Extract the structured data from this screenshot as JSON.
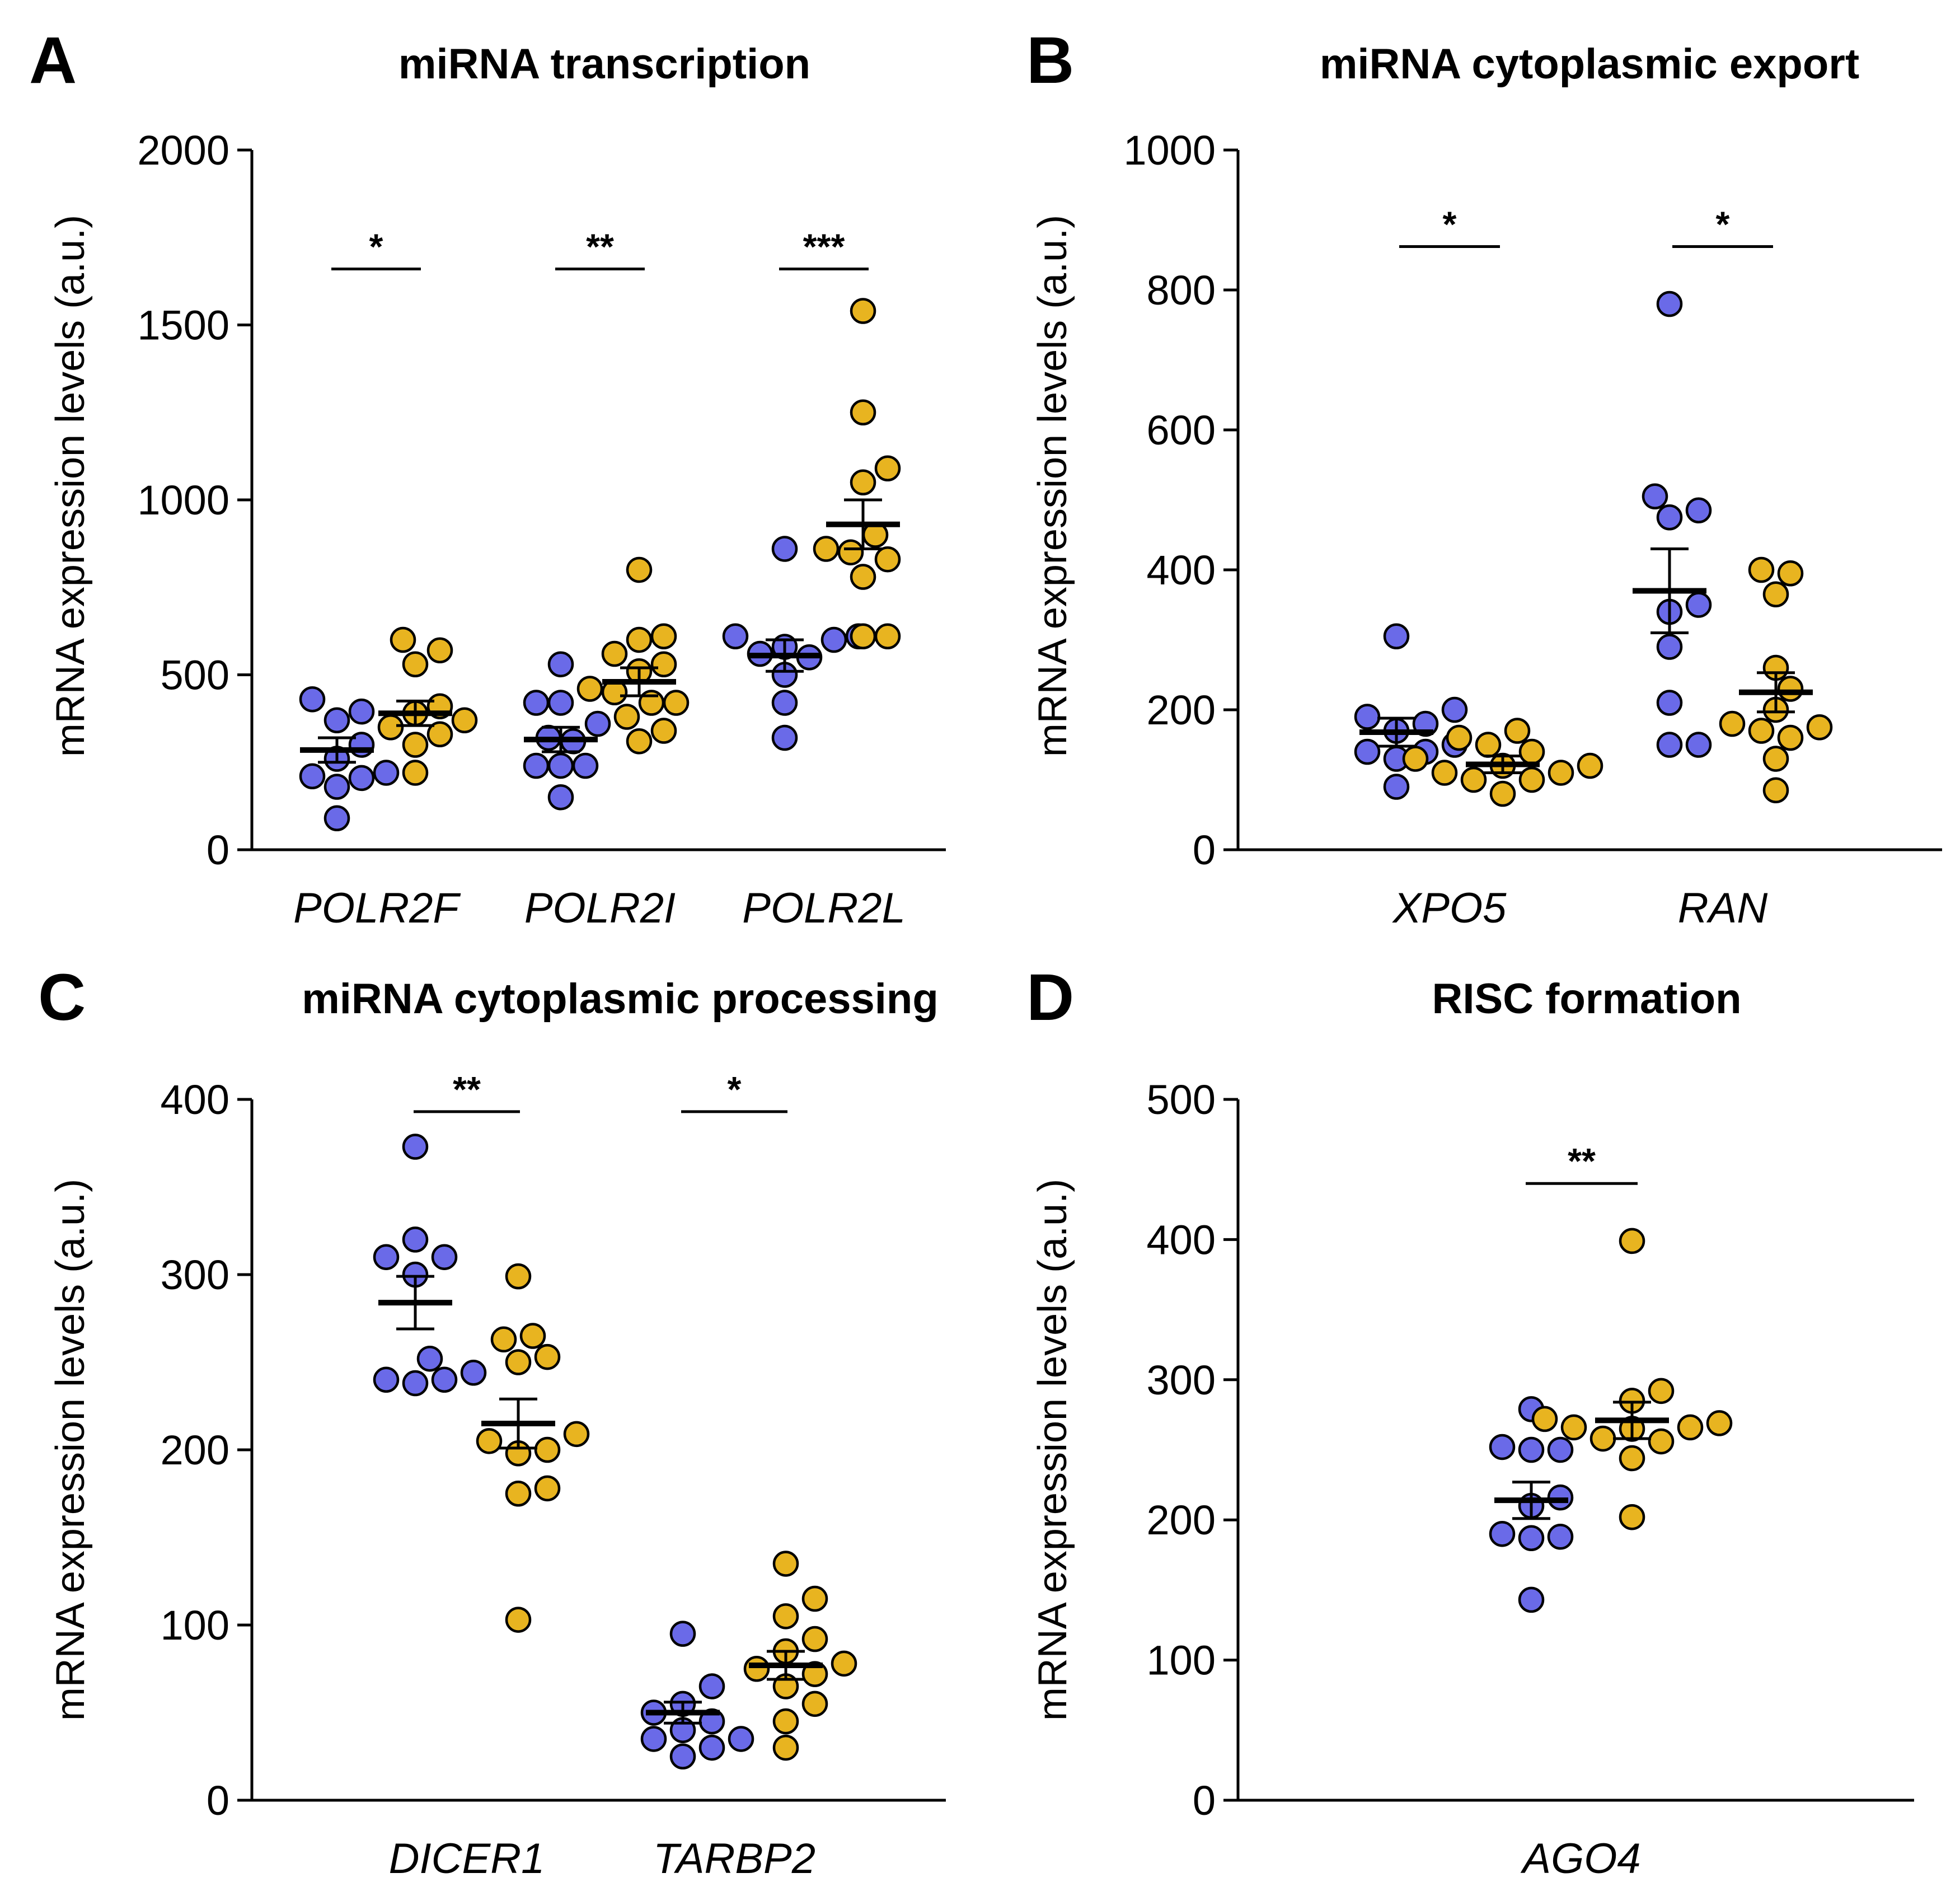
{
  "colors": {
    "group1": "#6a6ae8",
    "group2": "#e8b420",
    "outline": "#000000"
  },
  "chart_data": [
    {
      "panel": "A",
      "type": "scatter",
      "title": "miRNA transcription",
      "ylabel": "mRNA expression levels (a.u.)",
      "ylim": [
        0,
        2000
      ],
      "yticks": [
        0,
        500,
        1000,
        1500,
        2000
      ],
      "categories": [
        "POLR2F",
        "POLR2I",
        "POLR2L"
      ],
      "significance": [
        "*",
        "**",
        "***"
      ],
      "sig_level": 1660,
      "groups": [
        {
          "category": "POLR2F",
          "series": "group1",
          "mean": 285,
          "sem": 35,
          "values": [
            90,
            180,
            220,
            210,
            205,
            300,
            260,
            370,
            430,
            395
          ]
        },
        {
          "category": "POLR2F",
          "series": "group2",
          "mean": 390,
          "sem": 35,
          "values": [
            220,
            300,
            330,
            350,
            370,
            390,
            410,
            530,
            570,
            600
          ]
        },
        {
          "category": "POLR2I",
          "series": "group1",
          "mean": 315,
          "sem": 35,
          "values": [
            150,
            240,
            240,
            240,
            310,
            320,
            360,
            420,
            420,
            530
          ]
        },
        {
          "category": "POLR2I",
          "series": "group2",
          "mean": 480,
          "sem": 40,
          "values": [
            310,
            340,
            380,
            420,
            420,
            450,
            460,
            510,
            530,
            560,
            600,
            610,
            800
          ]
        },
        {
          "category": "POLR2L",
          "series": "group1",
          "mean": 555,
          "sem": 45,
          "values": [
            320,
            420,
            500,
            550,
            560,
            580,
            600,
            610,
            610,
            860
          ]
        },
        {
          "category": "POLR2L",
          "series": "group2",
          "mean": 930,
          "sem": 70,
          "values": [
            610,
            610,
            780,
            830,
            850,
            860,
            900,
            1050,
            1090,
            1250,
            1540
          ]
        }
      ]
    },
    {
      "panel": "B",
      "type": "scatter",
      "title": "miRNA cytoplasmic export",
      "ylabel": "mRNA expression levels (a.u.)",
      "ylim": [
        0,
        1000
      ],
      "yticks": [
        0,
        200,
        400,
        600,
        800,
        1000
      ],
      "categories": [
        "XPO5",
        "RAN"
      ],
      "significance": [
        "*",
        "*"
      ],
      "sig_level": 862,
      "groups": [
        {
          "category": "XPO5",
          "series": "group1",
          "mean": 168,
          "sem": 20,
          "values": [
            90,
            130,
            140,
            140,
            150,
            170,
            180,
            190,
            200,
            305
          ]
        },
        {
          "category": "XPO5",
          "series": "group2",
          "mean": 122,
          "sem": 12,
          "values": [
            80,
            100,
            100,
            110,
            110,
            120,
            120,
            130,
            140,
            150,
            160,
            170
          ]
        },
        {
          "category": "RAN",
          "series": "group1",
          "mean": 370,
          "sem": 60,
          "values": [
            150,
            150,
            210,
            290,
            340,
            350,
            475,
            485,
            505,
            780
          ]
        },
        {
          "category": "RAN",
          "series": "group2",
          "mean": 225,
          "sem": 28,
          "values": [
            85,
            130,
            160,
            170,
            175,
            180,
            200,
            230,
            260,
            365,
            395,
            400
          ]
        }
      ]
    },
    {
      "panel": "C",
      "type": "scatter",
      "title": "miRNA cytoplasmic processing",
      "ylabel": "mRNA expression levels (a.u.)",
      "ylim": [
        0,
        400
      ],
      "yticks": [
        0,
        100,
        200,
        300,
        400
      ],
      "categories": [
        "DICER1",
        "TARBP2"
      ],
      "significance": [
        "**",
        "*"
      ],
      "sig_level": 393,
      "groups": [
        {
          "category": "DICER1",
          "series": "group1",
          "mean": 284,
          "sem": 15,
          "values": [
            238,
            240,
            240,
            244,
            252,
            300,
            310,
            310,
            320,
            373
          ]
        },
        {
          "category": "DICER1",
          "series": "group2",
          "mean": 215,
          "sem": 14,
          "values": [
            103,
            175,
            178,
            198,
            200,
            205,
            209,
            250,
            253,
            263,
            265,
            299
          ]
        },
        {
          "category": "TARBP2",
          "series": "group1",
          "mean": 50,
          "sem": 6,
          "values": [
            25,
            30,
            35,
            35,
            40,
            45,
            50,
            55,
            65,
            95
          ]
        },
        {
          "category": "TARBP2",
          "series": "group2",
          "mean": 77,
          "sem": 8,
          "values": [
            30,
            45,
            55,
            65,
            72,
            75,
            78,
            85,
            92,
            105,
            115,
            135
          ]
        }
      ]
    },
    {
      "panel": "D",
      "type": "scatter",
      "title": "RISC formation",
      "ylabel": "mRNA expression levels (a.u.)",
      "ylim": [
        0,
        500
      ],
      "yticks": [
        0,
        100,
        200,
        300,
        400,
        500
      ],
      "categories": [
        "AGO4"
      ],
      "significance": [
        "**"
      ],
      "sig_level": 440,
      "groups": [
        {
          "category": "AGO4",
          "series": "group1",
          "mean": 214,
          "sem": 13,
          "values": [
            143,
            187,
            188,
            190,
            210,
            216,
            250,
            250,
            252,
            279
          ]
        },
        {
          "category": "AGO4",
          "series": "group2",
          "mean": 271,
          "sem": 13,
          "values": [
            202,
            244,
            256,
            258,
            265,
            266,
            266,
            269,
            272,
            285,
            292,
            399
          ]
        }
      ]
    }
  ]
}
